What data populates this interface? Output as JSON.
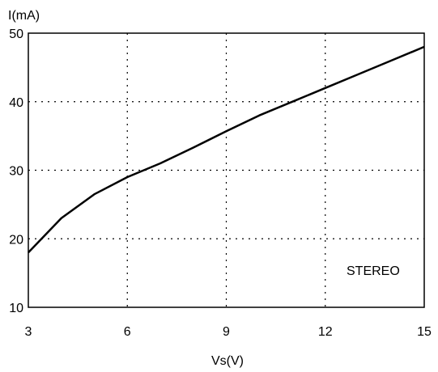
{
  "chart_data": {
    "type": "line",
    "title": "",
    "xlabel": "Vs(V)",
    "ylabel": "I(mA)",
    "xlim": [
      3,
      15
    ],
    "ylim": [
      10,
      50
    ],
    "x_ticks": [
      3,
      6,
      9,
      12,
      15
    ],
    "y_ticks": [
      10,
      20,
      30,
      40,
      50
    ],
    "grid": true,
    "annotation": "STEREO",
    "series": [
      {
        "x": [
          3,
          4,
          5,
          6,
          7,
          8,
          9,
          10,
          11,
          12,
          13,
          14,
          15
        ],
        "y": [
          18,
          23,
          26.5,
          29,
          31,
          33.3,
          35.7,
          38,
          40,
          42,
          44,
          46,
          48
        ]
      }
    ]
  }
}
